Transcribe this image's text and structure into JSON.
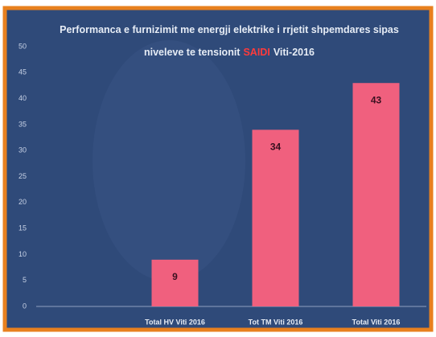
{
  "chart_data": {
    "type": "bar",
    "title_segments": [
      {
        "text": "Performanca e furnizimit me energji elektrike i rrjetit shpemdares sipas",
        "color": "#e6ecf5"
      },
      {
        "text": "niveleve te tensionit",
        "color": "#e6ecf5"
      },
      {
        "text": "SAIDI",
        "color": "#ff3b3b"
      },
      {
        "text": "Viti-2016",
        "color": "#e6ecf5"
      }
    ],
    "categories": [
      "Total HV Viti 2016",
      "Tot TM Viti 2016",
      "Total Viti 2016"
    ],
    "values": [
      9,
      34,
      43
    ],
    "color": "#f0607e",
    "ylim": [
      0,
      50
    ],
    "yticks": [
      0,
      5,
      10,
      15,
      20,
      25,
      30,
      35,
      40,
      45,
      50
    ],
    "grid": false
  }
}
